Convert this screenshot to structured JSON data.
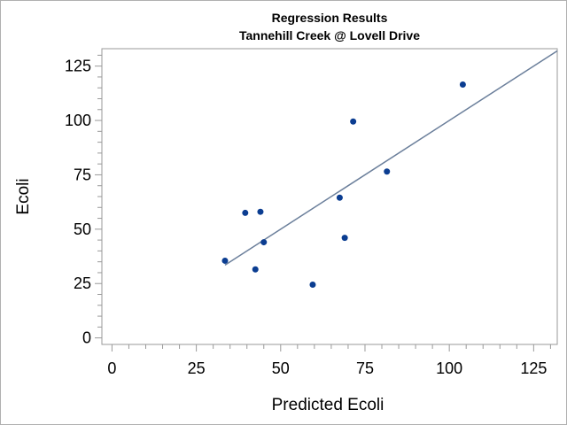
{
  "chart_data": {
    "type": "scatter",
    "title": "Regression Results",
    "subtitle": "Tannehill Creek @ Lovell Drive",
    "xlabel": "Predicted Ecoli",
    "ylabel": "Ecoli",
    "xlim": [
      -3,
      132
    ],
    "ylim": [
      -3,
      133
    ],
    "xticks": [
      0,
      25,
      50,
      75,
      100,
      125
    ],
    "yticks": [
      0,
      25,
      50,
      75,
      100,
      125
    ],
    "grid": false,
    "colors": {
      "points": "#0b3d91",
      "fit_line": "#6b7f9b",
      "axis": "#999999"
    },
    "points": [
      {
        "x": 33.5,
        "y": 35.5
      },
      {
        "x": 39.5,
        "y": 57.5
      },
      {
        "x": 42.5,
        "y": 31.5
      },
      {
        "x": 44.0,
        "y": 58.0
      },
      {
        "x": 45.0,
        "y": 44.0
      },
      {
        "x": 59.5,
        "y": 24.5
      },
      {
        "x": 67.5,
        "y": 64.5
      },
      {
        "x": 69.0,
        "y": 46.0
      },
      {
        "x": 71.5,
        "y": 99.5
      },
      {
        "x": 81.5,
        "y": 76.5
      },
      {
        "x": 104.0,
        "y": 116.5
      }
    ],
    "fit_line": {
      "x": [
        33.5,
        132
      ],
      "y": [
        33.5,
        132
      ]
    }
  }
}
